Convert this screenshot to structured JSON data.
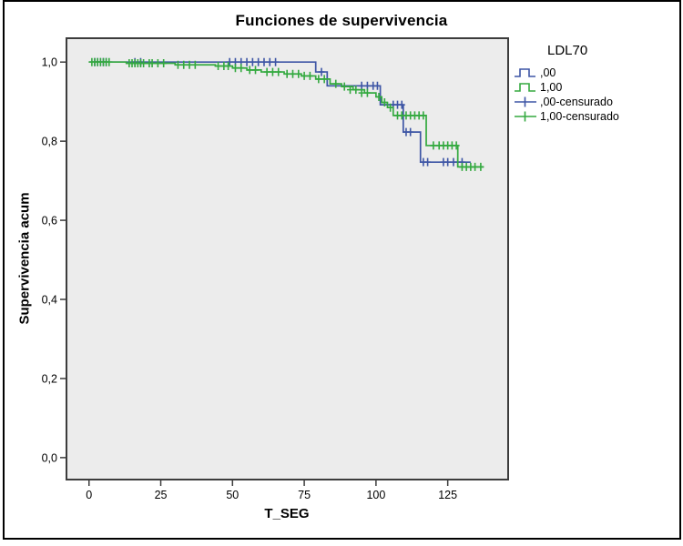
{
  "chart": {
    "title": "Funciones de supervivencia",
    "x_label": "T_SEG",
    "y_label": "Supervivencia acum"
  },
  "legend": {
    "title": "LDL70",
    "items": [
      {
        "label": ",00",
        "type": "step-line",
        "color": "#3D55A5"
      },
      {
        "label": "1,00",
        "type": "step-line",
        "color": "#33A93F"
      },
      {
        "label": ",00-censurado",
        "type": "censor-mark",
        "color": "#3D55A5"
      },
      {
        "label": "1,00-censurado",
        "type": "censor-mark",
        "color": "#33A93F"
      }
    ]
  },
  "colors": {
    "series_blue": "#3D55A5",
    "series_green": "#33A93F",
    "plot_background": "#ECECEC",
    "frame": "#3C3C3C",
    "text": "#000000"
  },
  "chart_data": {
    "type": "line",
    "subtype": "kaplan-meier-step-survival",
    "title": "Funciones de supervivencia",
    "xlabel": "T_SEG",
    "ylabel": "Supervivencia acum",
    "x_ticks": [
      0,
      25,
      50,
      75,
      100,
      125
    ],
    "x_tick_labels": [
      "0",
      "25",
      "50",
      "75",
      "100",
      "125"
    ],
    "y_ticks": [
      0.0,
      0.2,
      0.4,
      0.6,
      0.8,
      1.0
    ],
    "y_tick_labels": [
      "0,0",
      "0,2",
      "0,4",
      "0,6",
      "0,8",
      "1,0"
    ],
    "xlim": [
      -7.85,
      146.05
    ],
    "ylim": [
      -0.0555,
      1.0603
    ],
    "grid": false,
    "legend_position": "right",
    "series": [
      {
        "name": ",00",
        "color": "#3D55A5",
        "start": [
          0,
          1.0
        ],
        "steps": [
          [
            79,
            0.975
          ],
          [
            83,
            0.94
          ],
          [
            101.5,
            0.892
          ],
          [
            109.5,
            0.823
          ],
          [
            115.5,
            0.747
          ]
        ],
        "end_x": 133,
        "censored": [
          [
            2,
            1
          ],
          [
            3,
            1
          ],
          [
            4,
            1
          ],
          [
            5,
            1
          ],
          [
            6,
            1
          ],
          [
            16,
            1
          ],
          [
            18,
            1
          ],
          [
            49,
            1
          ],
          [
            51,
            1
          ],
          [
            53,
            1
          ],
          [
            55,
            1
          ],
          [
            57,
            1
          ],
          [
            59,
            1
          ],
          [
            61,
            1
          ],
          [
            63,
            1
          ],
          [
            65,
            1
          ],
          [
            81,
            0.975
          ],
          [
            95,
            0.94
          ],
          [
            97,
            0.94
          ],
          [
            99,
            0.94
          ],
          [
            100.5,
            0.94
          ],
          [
            106,
            0.892
          ],
          [
            107.5,
            0.892
          ],
          [
            109,
            0.892
          ],
          [
            110.5,
            0.823
          ],
          [
            112,
            0.823
          ],
          [
            116.5,
            0.747
          ],
          [
            118,
            0.747
          ],
          [
            123.5,
            0.747
          ],
          [
            125,
            0.747
          ],
          [
            127,
            0.747
          ],
          [
            128.5,
            0.747
          ],
          [
            130,
            0.747
          ]
        ]
      },
      {
        "name": "1,00",
        "color": "#33A93F",
        "start": [
          0,
          1.0
        ],
        "steps": [
          [
            13,
            0.997
          ],
          [
            30,
            0.993
          ],
          [
            44,
            0.99
          ],
          [
            50,
            0.985
          ],
          [
            55,
            0.98
          ],
          [
            60,
            0.975
          ],
          [
            68,
            0.97
          ],
          [
            74,
            0.965
          ],
          [
            79,
            0.957
          ],
          [
            84,
            0.945
          ],
          [
            88,
            0.938
          ],
          [
            92,
            0.93
          ],
          [
            96,
            0.922
          ],
          [
            100,
            0.912
          ],
          [
            102,
            0.898
          ],
          [
            104,
            0.885
          ],
          [
            106,
            0.865
          ],
          [
            117.5,
            0.789
          ],
          [
            128.5,
            0.735
          ]
        ],
        "end_x": 137.5,
        "censored": [
          [
            1,
            1
          ],
          [
            2,
            1
          ],
          [
            3,
            1
          ],
          [
            4,
            1
          ],
          [
            5,
            1
          ],
          [
            6,
            1
          ],
          [
            7,
            1
          ],
          [
            14,
            0.997
          ],
          [
            15,
            0.997
          ],
          [
            16,
            0.997
          ],
          [
            17,
            0.997
          ],
          [
            18,
            0.997
          ],
          [
            19,
            0.997
          ],
          [
            21,
            0.997
          ],
          [
            22,
            0.997
          ],
          [
            24,
            0.997
          ],
          [
            26,
            0.997
          ],
          [
            31,
            0.993
          ],
          [
            33,
            0.993
          ],
          [
            35,
            0.993
          ],
          [
            37,
            0.993
          ],
          [
            45,
            0.99
          ],
          [
            47,
            0.99
          ],
          [
            48.5,
            0.99
          ],
          [
            51,
            0.985
          ],
          [
            53,
            0.985
          ],
          [
            56,
            0.98
          ],
          [
            58,
            0.98
          ],
          [
            62,
            0.975
          ],
          [
            64,
            0.975
          ],
          [
            66,
            0.975
          ],
          [
            69,
            0.97
          ],
          [
            71,
            0.97
          ],
          [
            73,
            0.97
          ],
          [
            75,
            0.965
          ],
          [
            77,
            0.965
          ],
          [
            80,
            0.957
          ],
          [
            82,
            0.957
          ],
          [
            86,
            0.945
          ],
          [
            89,
            0.938
          ],
          [
            91,
            0.93
          ],
          [
            93,
            0.93
          ],
          [
            95,
            0.922
          ],
          [
            97,
            0.922
          ],
          [
            101,
            0.912
          ],
          [
            103,
            0.898
          ],
          [
            105,
            0.885
          ],
          [
            107.5,
            0.865
          ],
          [
            109,
            0.865
          ],
          [
            110.5,
            0.865
          ],
          [
            112,
            0.865
          ],
          [
            113.5,
            0.865
          ],
          [
            115,
            0.865
          ],
          [
            116.5,
            0.865
          ],
          [
            120,
            0.789
          ],
          [
            122,
            0.789
          ],
          [
            123.5,
            0.789
          ],
          [
            125,
            0.789
          ],
          [
            126.5,
            0.789
          ],
          [
            128,
            0.789
          ],
          [
            130,
            0.735
          ],
          [
            131.5,
            0.735
          ],
          [
            133,
            0.735
          ],
          [
            134.5,
            0.735
          ],
          [
            136.5,
            0.735
          ]
        ]
      }
    ]
  }
}
